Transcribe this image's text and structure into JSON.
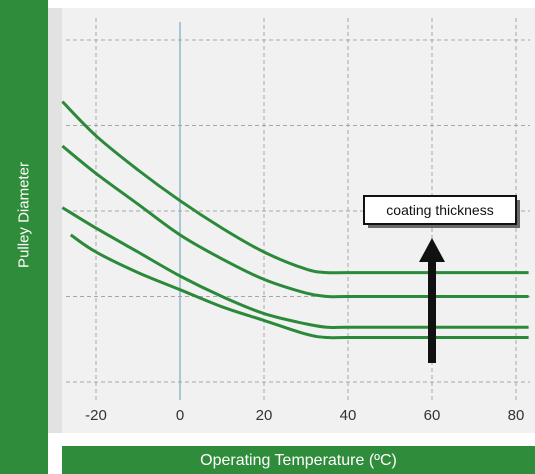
{
  "chart_data": {
    "type": "line",
    "xlabel": "Operating Temperature (ºC)",
    "ylabel": "Pulley Diameter",
    "x_ticks": [
      -20,
      0,
      20,
      40,
      60,
      80
    ],
    "xlim": [
      -28,
      83
    ],
    "yaxis_ticks_shown": false,
    "grid": true,
    "annotation": "coating thickness",
    "series": [
      {
        "x": [
          -28,
          -20,
          -10,
          0,
          10,
          20,
          30,
          35,
          40,
          60,
          83
        ],
        "y": [
          0.82,
          0.72,
          0.62,
          0.53,
          0.45,
          0.38,
          0.33,
          0.32,
          0.32,
          0.32,
          0.32
        ]
      },
      {
        "x": [
          -28,
          -20,
          -10,
          0,
          10,
          20,
          30,
          35,
          40,
          60,
          83
        ],
        "y": [
          0.69,
          0.61,
          0.52,
          0.43,
          0.36,
          0.3,
          0.26,
          0.25,
          0.25,
          0.25,
          0.25
        ]
      },
      {
        "x": [
          -28,
          -20,
          -10,
          0,
          10,
          20,
          30,
          35,
          40,
          60,
          83
        ],
        "y": [
          0.51,
          0.45,
          0.38,
          0.31,
          0.25,
          0.2,
          0.17,
          0.16,
          0.16,
          0.16,
          0.16
        ]
      },
      {
        "x": [
          -26,
          -20,
          -10,
          0,
          10,
          20,
          30,
          35,
          40,
          60,
          83
        ],
        "y": [
          0.43,
          0.38,
          0.32,
          0.27,
          0.22,
          0.18,
          0.14,
          0.13,
          0.13,
          0.13,
          0.13
        ]
      }
    ],
    "colors": {
      "band": "#2f8c3a",
      "series": "#2a8a3a",
      "grid": "#a6a6a6",
      "zero_line": "#7aa8c4",
      "arrow": "#111111"
    }
  }
}
